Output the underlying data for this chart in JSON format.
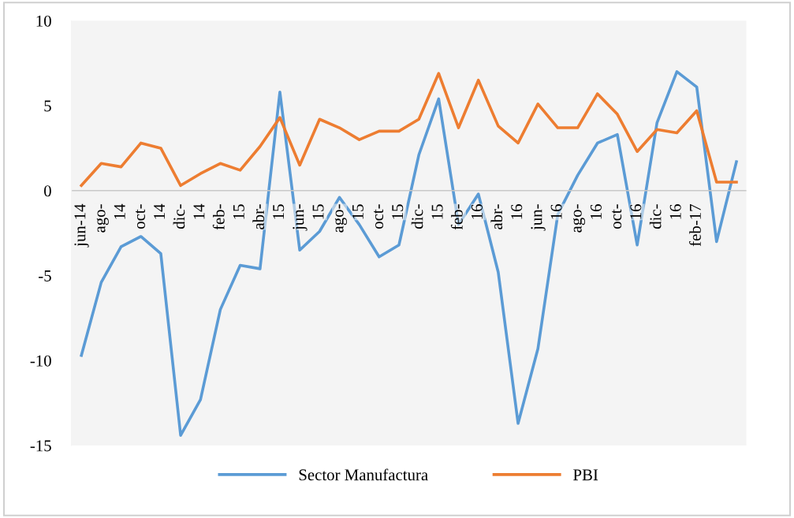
{
  "chart_data": {
    "type": "line",
    "categories": [
      "jun-14",
      "ago-",
      "14",
      "oct-",
      "14",
      "dic-",
      "14",
      "feb-",
      "15",
      "abr-",
      "15",
      "jun-",
      "15",
      "ago-",
      "15",
      "oct-",
      "15",
      "dic-",
      "15",
      "feb-",
      "16",
      "abr-",
      "16",
      "jun-",
      "16",
      "ago-",
      "16",
      "oct-",
      "16",
      "dic-",
      "16",
      "feb-17",
      null,
      null
    ],
    "series": [
      {
        "name": "Sector Manufactura",
        "color": "#5b9bd5",
        "values": [
          -9.7,
          -5.4,
          -3.3,
          -2.7,
          -3.7,
          -14.4,
          -12.3,
          -7.0,
          -4.4,
          -4.6,
          5.8,
          -3.5,
          -2.4,
          -0.4,
          -2.0,
          -3.9,
          -3.2,
          2.1,
          5.4,
          -2.0,
          -0.2,
          -4.8,
          -13.7,
          -9.3,
          -1.4,
          0.9,
          2.8,
          3.3,
          -3.2,
          4.0,
          7.0,
          6.1,
          -3.0,
          1.7
        ]
      },
      {
        "name": "PBI",
        "color": "#ed7d31",
        "values": [
          0.3,
          1.6,
          1.4,
          2.8,
          2.5,
          0.3,
          1.0,
          1.6,
          1.2,
          2.6,
          4.3,
          1.5,
          4.2,
          3.7,
          3.0,
          3.5,
          3.5,
          4.2,
          6.9,
          3.7,
          6.5,
          3.8,
          2.8,
          5.1,
          3.7,
          3.7,
          5.7,
          4.5,
          2.3,
          3.6,
          3.4,
          4.7,
          0.5,
          0.5
        ]
      }
    ],
    "ylim": [
      -15,
      10
    ],
    "yticks": [
      -15,
      -10,
      -5,
      0,
      5,
      10
    ],
    "grid": false,
    "legend": "bottom",
    "marker": "none",
    "line_style": "solid"
  }
}
